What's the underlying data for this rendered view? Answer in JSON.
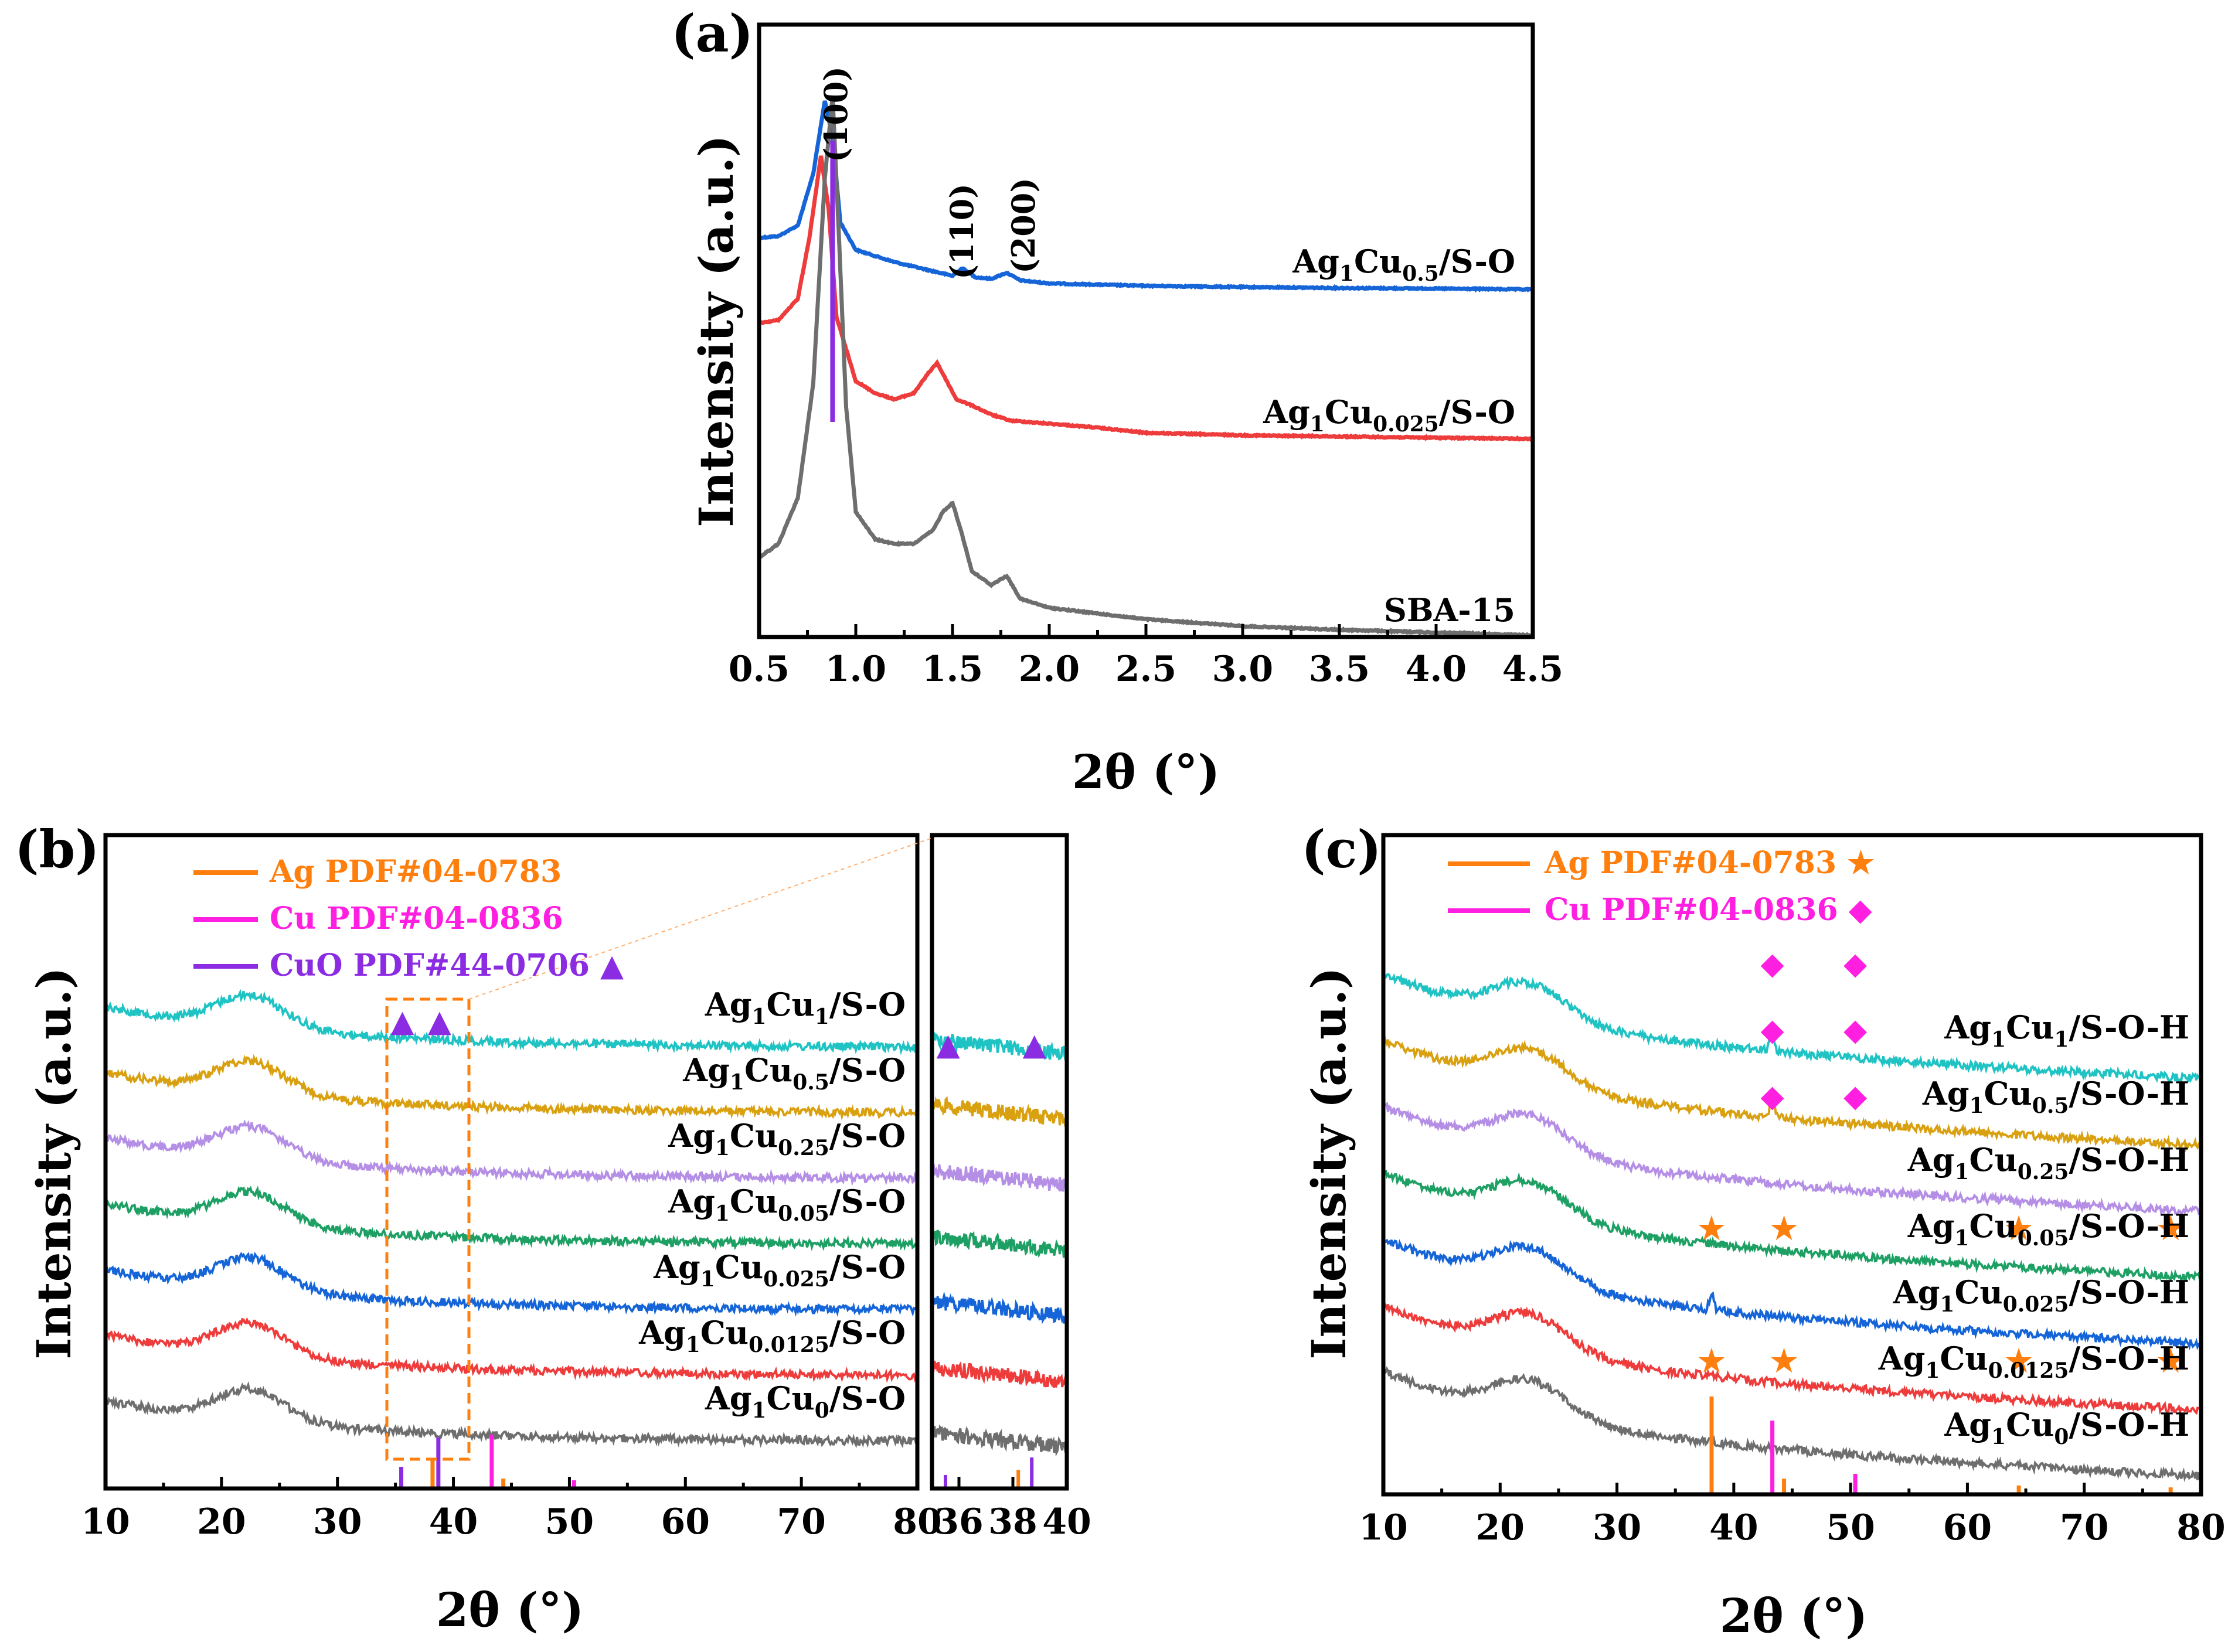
{
  "chart_data": [
    {
      "panel": "(a)",
      "type": "line",
      "xlabel": "2θ (°)",
      "ylabel": "Intensity (a.u.)",
      "xlim": [
        0.5,
        4.5
      ],
      "xticks": [
        "0.5",
        "1.0",
        "1.5",
        "2.0",
        "2.5",
        "3.0",
        "3.5",
        "4.0",
        "4.5"
      ],
      "annotations": [
        "(100)",
        "(110)",
        "(200)"
      ],
      "reference_line_x": 0.88,
      "series": [
        {
          "name": "Ag1Cu0.5/S-O",
          "label": {
            "pre": "Ag",
            "s1": "1",
            "mid": "Cu",
            "s2": "0.5",
            "post": "/S-O"
          },
          "color": "#1565d8",
          "points": [
            [
              0.5,
              0.17
            ],
            [
              0.6,
              0.175
            ],
            [
              0.7,
              0.21
            ],
            [
              0.78,
              0.38
            ],
            [
              0.84,
              0.62
            ],
            [
              0.88,
              0.5
            ],
            [
              0.92,
              0.22
            ],
            [
              1.0,
              0.13
            ],
            [
              1.2,
              0.09
            ],
            [
              1.4,
              0.06
            ],
            [
              1.5,
              0.045
            ],
            [
              1.55,
              0.07
            ],
            [
              1.62,
              0.04
            ],
            [
              1.7,
              0.035
            ],
            [
              1.78,
              0.055
            ],
            [
              1.85,
              0.03
            ],
            [
              2.0,
              0.02
            ],
            [
              2.5,
              0.012
            ],
            [
              3.0,
              0.008
            ],
            [
              3.5,
              0.005
            ],
            [
              4.0,
              0.003
            ],
            [
              4.5,
              0.0
            ]
          ]
        },
        {
          "name": "Ag1Cu0.025/S-O",
          "label": {
            "pre": "Ag",
            "s1": "1",
            "mid": "Cu",
            "s2": "0.025",
            "post": "/S-O"
          },
          "color": "#ee3b3b",
          "points": [
            [
              0.5,
              0.38
            ],
            [
              0.6,
              0.39
            ],
            [
              0.7,
              0.46
            ],
            [
              0.76,
              0.66
            ],
            [
              0.82,
              0.93
            ],
            [
              0.86,
              0.75
            ],
            [
              0.9,
              0.4
            ],
            [
              1.0,
              0.19
            ],
            [
              1.1,
              0.15
            ],
            [
              1.2,
              0.13
            ],
            [
              1.3,
              0.15
            ],
            [
              1.38,
              0.22
            ],
            [
              1.42,
              0.25
            ],
            [
              1.47,
              0.19
            ],
            [
              1.52,
              0.13
            ],
            [
              1.6,
              0.11
            ],
            [
              1.7,
              0.08
            ],
            [
              1.8,
              0.06
            ],
            [
              2.0,
              0.05
            ],
            [
              2.2,
              0.04
            ],
            [
              2.5,
              0.02
            ],
            [
              3.0,
              0.012
            ],
            [
              3.5,
              0.008
            ],
            [
              4.0,
              0.004
            ],
            [
              4.5,
              0.0
            ]
          ]
        },
        {
          "name": "SBA-15",
          "label": {
            "pre": "SBA-15",
            "s1": "",
            "mid": "",
            "s2": "",
            "post": ""
          },
          "color": "#6e6e6e",
          "points": [
            [
              0.5,
              0.17
            ],
            [
              0.6,
              0.2
            ],
            [
              0.7,
              0.3
            ],
            [
              0.78,
              0.55
            ],
            [
              0.84,
              1.0
            ],
            [
              0.88,
              1.18
            ],
            [
              0.91,
              0.9
            ],
            [
              0.95,
              0.5
            ],
            [
              1.0,
              0.27
            ],
            [
              1.1,
              0.21
            ],
            [
              1.2,
              0.2
            ],
            [
              1.3,
              0.2
            ],
            [
              1.4,
              0.23
            ],
            [
              1.45,
              0.27
            ],
            [
              1.5,
              0.29
            ],
            [
              1.55,
              0.22
            ],
            [
              1.6,
              0.14
            ],
            [
              1.7,
              0.11
            ],
            [
              1.78,
              0.13
            ],
            [
              1.85,
              0.08
            ],
            [
              2.0,
              0.06
            ],
            [
              2.2,
              0.05
            ],
            [
              2.3,
              0.045
            ],
            [
              2.5,
              0.035
            ],
            [
              3.0,
              0.02
            ],
            [
              3.5,
              0.012
            ],
            [
              4.0,
              0.006
            ],
            [
              4.5,
              0.0
            ]
          ]
        }
      ]
    },
    {
      "panel": "(b)",
      "type": "line",
      "xlabel": "2θ (°)",
      "ylabel": "Intensity (a.u.)",
      "xlim": [
        10,
        80
      ],
      "xticks": [
        "10",
        "20",
        "30",
        "40",
        "50",
        "60",
        "70",
        "80"
      ],
      "inset_xlim": [
        35,
        40
      ],
      "inset_xticks": [
        "36",
        "38",
        "40"
      ],
      "legend": [
        {
          "text": "Ag PDF#04-0783",
          "color": "#ff7f0e"
        },
        {
          "text": "Cu PDF#04-0836",
          "color": "#ff1fe0"
        },
        {
          "text": "CuO PDF#44-0706 ▲",
          "color": "#8b2be2"
        }
      ],
      "reference_peaks": [
        {
          "x": 35.5,
          "h": 0.35,
          "color": "#8b2be2"
        },
        {
          "x": 38.2,
          "h": 0.5,
          "color": "#ff7f0e"
        },
        {
          "x": 38.7,
          "h": 0.85,
          "color": "#8b2be2"
        },
        {
          "x": 43.3,
          "h": 0.9,
          "color": "#ff1fe0"
        },
        {
          "x": 44.3,
          "h": 0.15,
          "color": "#ff7f0e"
        },
        {
          "x": 50.4,
          "h": 0.12,
          "color": "#ff1fe0"
        }
      ],
      "markers": [
        {
          "x": 35.6,
          "symbol": "▲",
          "color": "#8b2be2"
        },
        {
          "x": 38.8,
          "symbol": "▲",
          "color": "#8b2be2"
        }
      ],
      "series": [
        {
          "name": "Ag1Cu1/S-O",
          "label": {
            "pre": "Ag",
            "s1": "1",
            "mid": "Cu",
            "s2": "1",
            "post": "/S-O"
          },
          "color": "#1fc3c3",
          "offset": 6
        },
        {
          "name": "Ag1Cu0.5/S-O",
          "label": {
            "pre": "Ag",
            "s1": "1",
            "mid": "Cu",
            "s2": "0.5",
            "post": "/S-O"
          },
          "color": "#d9a010",
          "offset": 5
        },
        {
          "name": "Ag1Cu0.25/S-O",
          "label": {
            "pre": "Ag",
            "s1": "1",
            "mid": "Cu",
            "s2": "0.25",
            "post": "/S-O"
          },
          "color": "#b58ee6",
          "offset": 4
        },
        {
          "name": "Ag1Cu0.05/S-O",
          "label": {
            "pre": "Ag",
            "s1": "1",
            "mid": "Cu",
            "s2": "0.05",
            "post": "/S-O"
          },
          "color": "#1ea064",
          "offset": 3
        },
        {
          "name": "Ag1Cu0.025/S-O",
          "label": {
            "pre": "Ag",
            "s1": "1",
            "mid": "Cu",
            "s2": "0.025",
            "post": "/S-O"
          },
          "color": "#1565d8",
          "offset": 2
        },
        {
          "name": "Ag1Cu0.0125/S-O",
          "label": {
            "pre": "Ag",
            "s1": "1",
            "mid": "Cu",
            "s2": "0.0125",
            "post": "/S-O"
          },
          "color": "#ee3b3b",
          "offset": 1
        },
        {
          "name": "Ag1Cu0/S-O",
          "label": {
            "pre": "Ag",
            "s1": "1",
            "mid": "Cu",
            "s2": "0",
            "post": "/S-O"
          },
          "color": "#6e6e6e",
          "offset": 0
        }
      ]
    },
    {
      "panel": "(c)",
      "type": "line",
      "xlabel": "2θ (°)",
      "ylabel": "Intensity (a.u.)",
      "xlim": [
        10,
        80
      ],
      "xticks": [
        "10",
        "20",
        "30",
        "40",
        "50",
        "60",
        "70",
        "80"
      ],
      "legend": [
        {
          "text": "Ag PDF#04-0783 ★",
          "color": "#ff7f0e"
        },
        {
          "text": "Cu PDF#04-0836 ◆",
          "color": "#ff1fe0"
        }
      ],
      "reference_peaks": [
        {
          "x": 38.1,
          "h": 1.0,
          "color": "#ff7f0e"
        },
        {
          "x": 43.3,
          "h": 0.75,
          "color": "#ff1fe0"
        },
        {
          "x": 44.3,
          "h": 0.15,
          "color": "#ff7f0e"
        },
        {
          "x": 50.4,
          "h": 0.2,
          "color": "#ff1fe0"
        },
        {
          "x": 64.4,
          "h": 0.08,
          "color": "#ff7f0e"
        },
        {
          "x": 77.4,
          "h": 0.06,
          "color": "#ff7f0e"
        }
      ],
      "markers": [
        {
          "series": 0,
          "x": 43.3,
          "symbol": "◆",
          "color": "#ff1fe0"
        },
        {
          "series": 0,
          "x": 50.4,
          "symbol": "◆",
          "color": "#ff1fe0"
        },
        {
          "series": 1,
          "x": 43.3,
          "symbol": "◆",
          "color": "#ff1fe0"
        },
        {
          "series": 1,
          "x": 50.4,
          "symbol": "◆",
          "color": "#ff1fe0"
        },
        {
          "series": 2,
          "x": 43.3,
          "symbol": "◆",
          "color": "#ff1fe0"
        },
        {
          "series": 2,
          "x": 50.4,
          "symbol": "◆",
          "color": "#ff1fe0"
        },
        {
          "series": 4,
          "x": 38.1,
          "symbol": "★",
          "color": "#ff7f0e"
        },
        {
          "series": 4,
          "x": 44.3,
          "symbol": "★",
          "color": "#ff7f0e"
        },
        {
          "series": 4,
          "x": 64.4,
          "symbol": "★",
          "color": "#ff7f0e"
        },
        {
          "series": 4,
          "x": 77.4,
          "symbol": "★",
          "color": "#ff7f0e"
        },
        {
          "series": 6,
          "x": 38.1,
          "symbol": "★",
          "color": "#ff7f0e"
        },
        {
          "series": 6,
          "x": 44.3,
          "symbol": "★",
          "color": "#ff7f0e"
        },
        {
          "series": 6,
          "x": 64.4,
          "symbol": "★",
          "color": "#ff7f0e"
        },
        {
          "series": 6,
          "x": 77.4,
          "symbol": "★",
          "color": "#ff7f0e"
        }
      ],
      "series": [
        {
          "name": "Ag1Cu1/S-O-H",
          "label": {
            "pre": "Ag",
            "s1": "1",
            "mid": "Cu",
            "s2": "1",
            "post": "/S-O-H"
          },
          "color": "#1fc3c3",
          "offset": 6,
          "peaks": [
            [
              43.3,
              0.35
            ]
          ]
        },
        {
          "name": "Ag1Cu0.5/S-O-H",
          "label": {
            "pre": "Ag",
            "s1": "1",
            "mid": "Cu",
            "s2": "0.5",
            "post": "/S-O-H"
          },
          "color": "#d9a010",
          "offset": 5,
          "peaks": [
            [
              43.3,
              0.5
            ]
          ]
        },
        {
          "name": "Ag1Cu0.25/S-O-H",
          "label": {
            "pre": "Ag",
            "s1": "1",
            "mid": "Cu",
            "s2": "0.25",
            "post": "/S-O-H"
          },
          "color": "#b58ee6",
          "offset": 4,
          "peaks": []
        },
        {
          "name": "Ag1Cu0.05/S-O-H",
          "label": {
            "pre": "Ag",
            "s1": "1",
            "mid": "Cu",
            "s2": "0.05",
            "post": "/S-O-H"
          },
          "color": "#1ea064",
          "offset": 3,
          "peaks": []
        },
        {
          "name": "Ag1Cu0.025/S-O-H",
          "label": {
            "pre": "Ag",
            "s1": "1",
            "mid": "Cu",
            "s2": "0.025",
            "post": "/S-O-H"
          },
          "color": "#1565d8",
          "offset": 2,
          "peaks": [
            [
              38.1,
              0.3
            ]
          ]
        },
        {
          "name": "Ag1Cu0.0125/S-O-H",
          "label": {
            "pre": "Ag",
            "s1": "1",
            "mid": "Cu",
            "s2": "0.0125",
            "post": "/S-O-H"
          },
          "color": "#ee3b3b",
          "offset": 1,
          "peaks": []
        },
        {
          "name": "Ag1Cu0/S-O-H",
          "label": {
            "pre": "Ag",
            "s1": "1",
            "mid": "Cu",
            "s2": "0",
            "post": "/S-O-H"
          },
          "color": "#6e6e6e",
          "offset": 0,
          "peaks": []
        }
      ]
    }
  ]
}
